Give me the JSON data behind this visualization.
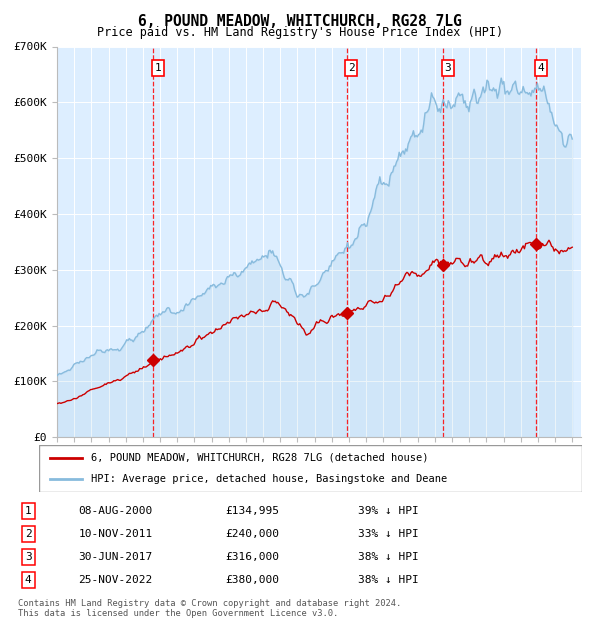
{
  "title": "6, POUND MEADOW, WHITCHURCH, RG28 7LG",
  "subtitle": "Price paid vs. HM Land Registry's House Price Index (HPI)",
  "background_color": "#ddeeff",
  "y_min": 0,
  "y_max": 700000,
  "y_ticks": [
    0,
    100000,
    200000,
    300000,
    400000,
    500000,
    600000,
    700000
  ],
  "y_tick_labels": [
    "£0",
    "£100K",
    "£200K",
    "£300K",
    "£400K",
    "£500K",
    "£600K",
    "£700K"
  ],
  "sale_dates_num": [
    2000.607,
    2011.86,
    2017.496,
    2022.899
  ],
  "sale_prices": [
    134995,
    240000,
    316000,
    380000
  ],
  "sale_labels": [
    "1",
    "2",
    "3",
    "4"
  ],
  "red_line_color": "#cc0000",
  "blue_line_color": "#88bbdd",
  "legend_label_red": "6, POUND MEADOW, WHITCHURCH, RG28 7LG (detached house)",
  "legend_label_blue": "HPI: Average price, detached house, Basingstoke and Deane",
  "table_data": [
    [
      "1",
      "08-AUG-2000",
      "£134,995",
      "39% ↓ HPI"
    ],
    [
      "2",
      "10-NOV-2011",
      "£240,000",
      "33% ↓ HPI"
    ],
    [
      "3",
      "30-JUN-2017",
      "£316,000",
      "38% ↓ HPI"
    ],
    [
      "4",
      "25-NOV-2022",
      "£380,000",
      "38% ↓ HPI"
    ]
  ],
  "footer": "Contains HM Land Registry data © Crown copyright and database right 2024.\nThis data is licensed under the Open Government Licence v3.0."
}
